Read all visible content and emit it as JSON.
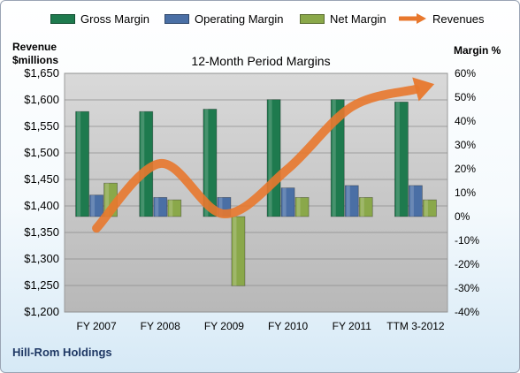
{
  "chart_data": {
    "type": "bar",
    "title": "12-Month Period Margins",
    "left_axis_title": [
      "Revenue",
      "$millions"
    ],
    "right_axis_title": "Margin %",
    "categories": [
      "FY 2007",
      "FY 2008",
      "FY 2009",
      "FY 2010",
      "FY 2011",
      "TTM 3-2012"
    ],
    "series": [
      {
        "name": "Gross Margin",
        "type": "bar",
        "axis": "right",
        "color": "#1e7a4e",
        "values": [
          44,
          44,
          45,
          49,
          49,
          48
        ]
      },
      {
        "name": "Operating Margin",
        "type": "bar",
        "axis": "right",
        "color": "#4a6fa5",
        "values": [
          9,
          8,
          8,
          12,
          13,
          13
        ]
      },
      {
        "name": "Net Margin",
        "type": "bar",
        "axis": "right",
        "color": "#8aa84a",
        "values": [
          14,
          7,
          -29,
          8,
          8,
          7
        ]
      },
      {
        "name": "Revenues",
        "type": "line",
        "axis": "left",
        "color": "#e8782d",
        "values": [
          1358,
          1480,
          1385,
          1470,
          1587,
          1620
        ]
      }
    ],
    "left_axis": {
      "min": 1200,
      "max": 1650,
      "step": 50,
      "tick_labels": [
        "$1,200",
        "$1,250",
        "$1,300",
        "$1,350",
        "$1,400",
        "$1,450",
        "$1,500",
        "$1,550",
        "$1,600",
        "$1,650"
      ]
    },
    "right_axis": {
      "min": -40,
      "max": 60,
      "step": 10,
      "tick_labels": [
        "-40%",
        "-30%",
        "-20%",
        "-10%",
        "0%",
        "10%",
        "20%",
        "30%",
        "40%",
        "50%",
        "60%"
      ]
    },
    "grid": true,
    "legend_position": "top"
  },
  "footer": {
    "company": "Hill-Rom Holdings"
  }
}
